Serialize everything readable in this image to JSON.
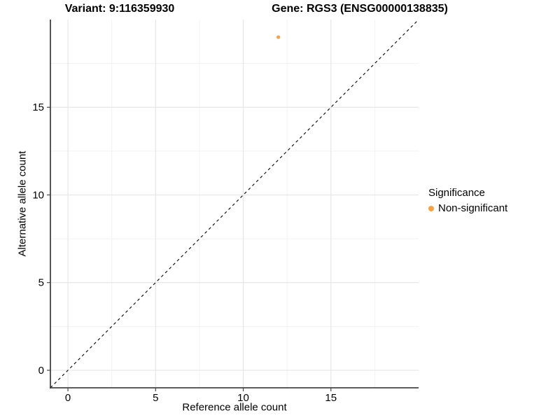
{
  "header": {
    "variant_title": "Variant: 9:116359930",
    "gene_title": "Gene: RGS3 (ENSG00000138835)"
  },
  "legend": {
    "title": "Significance",
    "items": [
      {
        "label": "Non-significant",
        "color": "#F9A242"
      }
    ]
  },
  "chart_data": {
    "type": "scatter",
    "title": "Variant: 9:116359930 — Gene: RGS3 (ENSG00000138835)",
    "xlabel": "Reference allele count",
    "ylabel": "Alternative allele count",
    "xlim": [
      -1,
      20
    ],
    "ylim": [
      -1,
      20
    ],
    "xticks": [
      0,
      5,
      10,
      15
    ],
    "yticks": [
      0,
      5,
      10,
      15
    ],
    "minor_tick_step": 2.5,
    "grid": "on",
    "legend_position": "right",
    "series": [
      {
        "name": "Non-significant",
        "color": "#F9A242",
        "points": [
          {
            "x": 12,
            "y": 19
          }
        ]
      }
    ],
    "reference_line": {
      "type": "identity",
      "style": "dashed",
      "color": "#000000"
    },
    "style": {
      "grid_major_color": "#E6E6E6",
      "grid_minor_color": "#F2F2F2",
      "axis_line_color": "#464646",
      "tick_label_size": 15,
      "background": "#FFFFFF"
    }
  }
}
